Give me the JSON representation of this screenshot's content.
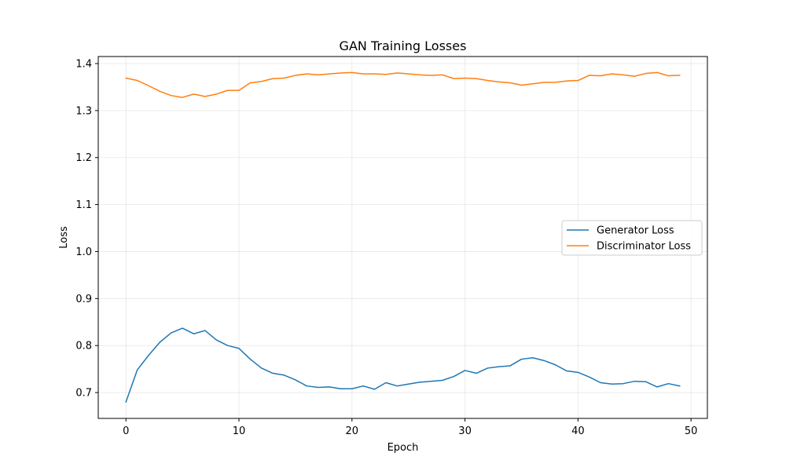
{
  "chart_data": {
    "type": "line",
    "title": "GAN Training Losses",
    "xlabel": "Epoch",
    "ylabel": "Loss",
    "xlim": [
      -2.45,
      51.45
    ],
    "ylim": [
      0.645,
      1.415
    ],
    "xticks": [
      0,
      10,
      20,
      30,
      40,
      50
    ],
    "yticks": [
      0.7,
      0.8,
      0.9,
      1.0,
      1.1,
      1.2,
      1.3,
      1.4
    ],
    "ytick_labels": [
      "0.7",
      "0.8",
      "0.9",
      "1.0",
      "1.1",
      "1.2",
      "1.3",
      "1.4"
    ],
    "grid": true,
    "legend_position": "center-right",
    "x": [
      0,
      1,
      2,
      3,
      4,
      5,
      6,
      7,
      8,
      9,
      10,
      11,
      12,
      13,
      14,
      15,
      16,
      17,
      18,
      19,
      20,
      21,
      22,
      23,
      24,
      25,
      26,
      27,
      28,
      29,
      30,
      31,
      32,
      33,
      34,
      35,
      36,
      37,
      38,
      39,
      40,
      41,
      42,
      43,
      44,
      45,
      46,
      47,
      48,
      49
    ],
    "series": [
      {
        "name": "Generator Loss",
        "color": "#1f77b4",
        "values": [
          0.68,
          0.748,
          0.779,
          0.807,
          0.827,
          0.837,
          0.825,
          0.832,
          0.812,
          0.8,
          0.794,
          0.771,
          0.752,
          0.741,
          0.737,
          0.727,
          0.714,
          0.711,
          0.712,
          0.708,
          0.708,
          0.714,
          0.707,
          0.721,
          0.714,
          0.718,
          0.722,
          0.724,
          0.726,
          0.734,
          0.747,
          0.741,
          0.752,
          0.755,
          0.757,
          0.771,
          0.774,
          0.768,
          0.759,
          0.746,
          0.743,
          0.733,
          0.721,
          0.718,
          0.719,
          0.724,
          0.723,
          0.712,
          0.719,
          0.714
        ]
      },
      {
        "name": "Discriminator Loss",
        "color": "#ff7f0e",
        "values": [
          1.369,
          1.364,
          1.353,
          1.341,
          1.332,
          1.328,
          1.335,
          1.33,
          1.335,
          1.343,
          1.343,
          1.359,
          1.362,
          1.368,
          1.369,
          1.375,
          1.378,
          1.376,
          1.378,
          1.38,
          1.381,
          1.378,
          1.378,
          1.377,
          1.38,
          1.378,
          1.376,
          1.375,
          1.376,
          1.368,
          1.369,
          1.368,
          1.364,
          1.361,
          1.359,
          1.354,
          1.357,
          1.36,
          1.36,
          1.363,
          1.364,
          1.375,
          1.374,
          1.378,
          1.376,
          1.373,
          1.379,
          1.381,
          1.374,
          1.375
        ]
      }
    ]
  }
}
